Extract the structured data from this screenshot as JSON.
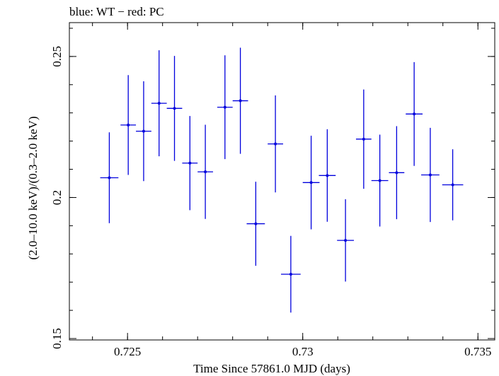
{
  "chart_data": {
    "type": "scatter",
    "title": "blue: WT − red: PC",
    "xlabel": "Time Since 57861.0 MJD (days)",
    "ylabel": "(2.0–10.0 keV)/(0.3–2.0 keV)",
    "xlim": [
      0.72334,
      0.73548
    ],
    "ylim": [
      0.1495,
      0.262
    ],
    "xticks": [
      {
        "value": 0.725,
        "label": "0.725"
      },
      {
        "value": 0.73,
        "label": "0.73"
      },
      {
        "value": 0.735,
        "label": "0.735"
      }
    ],
    "yticks": [
      {
        "value": 0.15,
        "label": "0.15"
      },
      {
        "value": 0.2,
        "label": "0.2"
      },
      {
        "value": 0.25,
        "label": "0.25"
      }
    ],
    "x_minor_step": 0.001,
    "y_minor_step": 0.01,
    "grid": false,
    "series": [
      {
        "color": "#0000dd",
        "points": [
          {
            "x": 0.72448,
            "xerr": 0.00026,
            "y": 0.207,
            "yerr": 0.0161
          },
          {
            "x": 0.72502,
            "xerr": 0.00022,
            "y": 0.2257,
            "yerr": 0.0177
          },
          {
            "x": 0.72546,
            "xerr": 0.00022,
            "y": 0.2235,
            "yerr": 0.0177
          },
          {
            "x": 0.7259,
            "xerr": 0.00022,
            "y": 0.2334,
            "yerr": 0.0188
          },
          {
            "x": 0.72634,
            "xerr": 0.00022,
            "y": 0.2316,
            "yerr": 0.0186
          },
          {
            "x": 0.72678,
            "xerr": 0.00022,
            "y": 0.2122,
            "yerr": 0.0167
          },
          {
            "x": 0.72722,
            "xerr": 0.00022,
            "y": 0.2091,
            "yerr": 0.0167
          },
          {
            "x": 0.72778,
            "xerr": 0.00022,
            "y": 0.232,
            "yerr": 0.0184
          },
          {
            "x": 0.72822,
            "xerr": 0.00022,
            "y": 0.2343,
            "yerr": 0.0188
          },
          {
            "x": 0.72866,
            "xerr": 0.00026,
            "y": 0.1907,
            "yerr": 0.0149
          },
          {
            "x": 0.72922,
            "xerr": 0.00022,
            "y": 0.219,
            "yerr": 0.0172
          },
          {
            "x": 0.72966,
            "xerr": 0.00028,
            "y": 0.1728,
            "yerr": 0.0136
          },
          {
            "x": 0.73024,
            "xerr": 0.00024,
            "y": 0.2053,
            "yerr": 0.0166
          },
          {
            "x": 0.7307,
            "xerr": 0.00024,
            "y": 0.2078,
            "yerr": 0.0164
          },
          {
            "x": 0.73122,
            "xerr": 0.00024,
            "y": 0.1848,
            "yerr": 0.0146
          },
          {
            "x": 0.73174,
            "xerr": 0.00022,
            "y": 0.2207,
            "yerr": 0.0176
          },
          {
            "x": 0.7322,
            "xerr": 0.00024,
            "y": 0.206,
            "yerr": 0.0163
          },
          {
            "x": 0.73268,
            "xerr": 0.00022,
            "y": 0.2088,
            "yerr": 0.0165
          },
          {
            "x": 0.73318,
            "xerr": 0.00024,
            "y": 0.2296,
            "yerr": 0.0184
          },
          {
            "x": 0.73364,
            "xerr": 0.00026,
            "y": 0.208,
            "yerr": 0.0167
          },
          {
            "x": 0.73428,
            "xerr": 0.0003,
            "y": 0.2045,
            "yerr": 0.0126
          }
        ]
      }
    ]
  }
}
